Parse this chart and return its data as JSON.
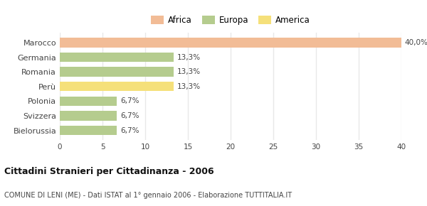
{
  "categories": [
    "Marocco",
    "Germania",
    "Romania",
    "Perù",
    "Polonia",
    "Svizzera",
    "Bielorussia"
  ],
  "values": [
    40.0,
    13.3,
    13.3,
    13.3,
    6.7,
    6.7,
    6.7
  ],
  "labels": [
    "40,0%",
    "13,3%",
    "13,3%",
    "13,3%",
    "6,7%",
    "6,7%",
    "6,7%"
  ],
  "colors": [
    "#f2bc96",
    "#b5cc8e",
    "#b5cc8e",
    "#f5e07a",
    "#b5cc8e",
    "#b5cc8e",
    "#b5cc8e"
  ],
  "legend": [
    {
      "label": "Africa",
      "color": "#f2bc96"
    },
    {
      "label": "Europa",
      "color": "#b5cc8e"
    },
    {
      "label": "America",
      "color": "#f5e07a"
    }
  ],
  "xlim": [
    0,
    40
  ],
  "xticks": [
    0,
    5,
    10,
    15,
    20,
    25,
    30,
    35,
    40
  ],
  "title": "Cittadini Stranieri per Cittadinanza - 2006",
  "subtitle": "COMUNE DI LENI (ME) - Dati ISTAT al 1° gennaio 2006 - Elaborazione TUTTITALIA.IT",
  "background_color": "#ffffff",
  "grid_color": "#e8e8e8",
  "bar_height": 0.65
}
